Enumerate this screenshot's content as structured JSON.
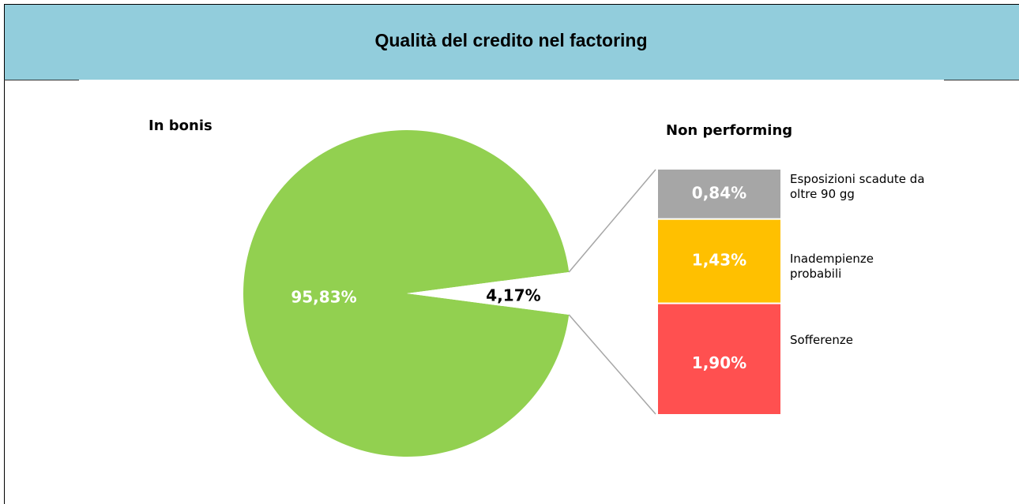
{
  "chart_data": {
    "type": "pie-of-bar",
    "title": "Qualità del credito nel factoring",
    "categories": [
      "In bonis",
      "Non performing"
    ],
    "values": [
      95.83,
      4.17
    ],
    "value_labels": [
      "95,83%",
      "4,17%"
    ],
    "color": "#92d050",
    "breakdown": {
      "categories": [
        "Esposizioni scadute da oltre 90 gg",
        "Inadempienze probabili",
        "Sofferenze"
      ],
      "values": [
        0.84,
        1.43,
        1.9
      ],
      "value_labels": [
        "0,84%",
        "1,43%",
        "1,90%"
      ],
      "colors": [
        "#a6a6a6",
        "#ffc000",
        "#ff5050"
      ]
    }
  }
}
